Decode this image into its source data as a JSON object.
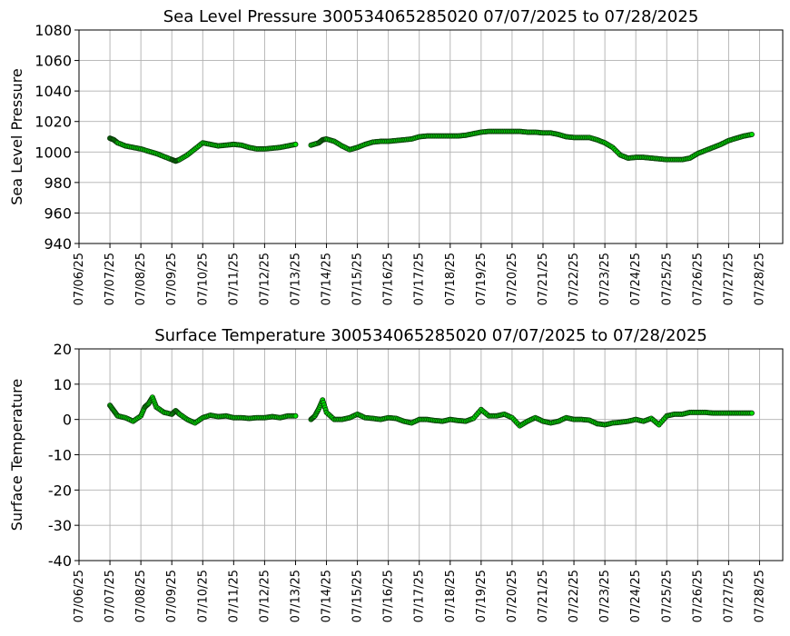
{
  "chart_data": [
    {
      "type": "scatter",
      "title": "Sea Level Pressure 300534065285020  07/07/2025 to 07/28/2025",
      "xlabel": "",
      "ylabel": "Sea Level Pressure",
      "xlim": [
        "07/06/2025",
        "07/28/2025 18:00"
      ],
      "ylim": [
        940,
        1080
      ],
      "yticks": [
        940,
        960,
        980,
        1000,
        1020,
        1040,
        1060,
        1080
      ],
      "xtick_labels": [
        "07/06/25",
        "07/07/25",
        "07/08/25",
        "07/09/25",
        "07/10/25",
        "07/11/25",
        "07/12/25",
        "07/13/25",
        "07/14/25",
        "07/15/25",
        "07/16/25",
        "07/17/25",
        "07/18/25",
        "07/19/25",
        "07/20/25",
        "07/21/25",
        "07/22/25",
        "07/23/25",
        "07/24/25",
        "07/25/25",
        "07/26/25",
        "07/27/25",
        "07/28/25"
      ],
      "grid": true,
      "marker_color": "#00e000",
      "marker_edge_color": "#0a3a0a",
      "series": [
        {
          "points": [
            [
              "07/07/2025 00:00",
              1009
            ],
            [
              "07/07/2025 03:00",
              1008
            ],
            [
              "07/07/2025 06:00",
              1006
            ],
            [
              "07/07/2025 12:00",
              1004
            ],
            [
              "07/07/2025 18:00",
              1003
            ],
            [
              "07/08/2025 00:00",
              1002
            ],
            [
              "07/08/2025 06:00",
              1000.5
            ],
            [
              "07/08/2025 12:00",
              999
            ],
            [
              "07/08/2025 18:00",
              997
            ],
            [
              "07/09/2025 00:00",
              995
            ],
            [
              "07/09/2025 03:00",
              994
            ],
            [
              "07/09/2025 06:00",
              995
            ],
            [
              "07/09/2025 12:00",
              998
            ],
            [
              "07/09/2025 18:00",
              1002
            ],
            [
              "07/10/2025 00:00",
              1006
            ],
            [
              "07/10/2025 06:00",
              1005
            ],
            [
              "07/10/2025 12:00",
              1004
            ],
            [
              "07/10/2025 18:00",
              1004.5
            ],
            [
              "07/11/2025 00:00",
              1005
            ],
            [
              "07/11/2025 06:00",
              1004.5
            ],
            [
              "07/11/2025 12:00",
              1003
            ],
            [
              "07/11/2025 18:00",
              1002
            ],
            [
              "07/12/2025 00:00",
              1002
            ],
            [
              "07/12/2025 06:00",
              1002.5
            ],
            [
              "07/12/2025 12:00",
              1003
            ],
            [
              "07/12/2025 18:00",
              1004
            ],
            [
              "07/13/2025 00:00",
              1005
            ],
            [
              "07/13/2025 12:00",
              1004.5
            ],
            [
              "07/13/2025 18:00",
              1006
            ],
            [
              "07/13/2025 21:00",
              1008
            ],
            [
              "07/14/2025 00:00",
              1008.5
            ],
            [
              "07/14/2025 06:00",
              1007
            ],
            [
              "07/14/2025 12:00",
              1004
            ],
            [
              "07/14/2025 18:00",
              1001.5
            ],
            [
              "07/15/2025 00:00",
              1003
            ],
            [
              "07/15/2025 06:00",
              1005
            ],
            [
              "07/15/2025 12:00",
              1006.5
            ],
            [
              "07/15/2025 18:00",
              1007
            ],
            [
              "07/16/2025 00:00",
              1007
            ],
            [
              "07/16/2025 06:00",
              1007.5
            ],
            [
              "07/16/2025 12:00",
              1008
            ],
            [
              "07/16/2025 18:00",
              1008.5
            ],
            [
              "07/17/2025 00:00",
              1010
            ],
            [
              "07/17/2025 06:00",
              1010.5
            ],
            [
              "07/17/2025 12:00",
              1010.5
            ],
            [
              "07/17/2025 18:00",
              1010.5
            ],
            [
              "07/18/2025 00:00",
              1010.5
            ],
            [
              "07/18/2025 06:00",
              1010.5
            ],
            [
              "07/18/2025 12:00",
              1011
            ],
            [
              "07/18/2025 18:00",
              1012
            ],
            [
              "07/19/2025 00:00",
              1013
            ],
            [
              "07/19/2025 06:00",
              1013.5
            ],
            [
              "07/19/2025 12:00",
              1013.5
            ],
            [
              "07/19/2025 18:00",
              1013.5
            ],
            [
              "07/20/2025 00:00",
              1013.5
            ],
            [
              "07/20/2025 06:00",
              1013.5
            ],
            [
              "07/20/2025 12:00",
              1013
            ],
            [
              "07/20/2025 18:00",
              1013
            ],
            [
              "07/21/2025 00:00",
              1012.5
            ],
            [
              "07/21/2025 06:00",
              1012.5
            ],
            [
              "07/21/2025 12:00",
              1011.5
            ],
            [
              "07/21/2025 18:00",
              1010
            ],
            [
              "07/22/2025 00:00",
              1009.5
            ],
            [
              "07/22/2025 06:00",
              1009.5
            ],
            [
              "07/22/2025 12:00",
              1009.5
            ],
            [
              "07/22/2025 18:00",
              1008
            ],
            [
              "07/23/2025 00:00",
              1006
            ],
            [
              "07/23/2025 06:00",
              1003
            ],
            [
              "07/23/2025 12:00",
              998
            ],
            [
              "07/23/2025 18:00",
              996
            ],
            [
              "07/24/2025 00:00",
              996.5
            ],
            [
              "07/24/2025 06:00",
              996.5
            ],
            [
              "07/24/2025 12:00",
              996
            ],
            [
              "07/24/2025 18:00",
              995.5
            ],
            [
              "07/25/2025 00:00",
              995
            ],
            [
              "07/25/2025 06:00",
              995
            ],
            [
              "07/25/2025 12:00",
              995
            ],
            [
              "07/25/2025 18:00",
              996
            ],
            [
              "07/26/2025 00:00",
              999
            ],
            [
              "07/26/2025 06:00",
              1001
            ],
            [
              "07/26/2025 12:00",
              1003
            ],
            [
              "07/26/2025 18:00",
              1005
            ],
            [
              "07/27/2025 00:00",
              1007.5
            ],
            [
              "07/27/2025 06:00",
              1009
            ],
            [
              "07/27/2025 12:00",
              1010.5
            ],
            [
              "07/27/2025 18:00",
              1011.5
            ]
          ]
        }
      ]
    },
    {
      "type": "scatter",
      "title": "Surface Temperature 300534065285020  07/07/2025 to 07/28/2025",
      "xlabel": "",
      "ylabel": "Surface Temperature",
      "xlim": [
        "07/06/2025",
        "07/28/2025 18:00"
      ],
      "ylim": [
        -40,
        20
      ],
      "yticks": [
        -40,
        -30,
        -20,
        -10,
        0,
        10,
        20
      ],
      "xtick_labels": [
        "07/06/25",
        "07/07/25",
        "07/08/25",
        "07/09/25",
        "07/10/25",
        "07/11/25",
        "07/12/25",
        "07/13/25",
        "07/14/25",
        "07/15/25",
        "07/16/25",
        "07/17/25",
        "07/18/25",
        "07/19/25",
        "07/20/25",
        "07/21/25",
        "07/22/25",
        "07/23/25",
        "07/24/25",
        "07/25/25",
        "07/26/25",
        "07/27/25",
        "07/28/25"
      ],
      "grid": true,
      "marker_color": "#00e000",
      "marker_edge_color": "#0a3a0a",
      "series": [
        {
          "points": [
            [
              "07/07/2025 00:00",
              4
            ],
            [
              "07/07/2025 03:00",
              2.5
            ],
            [
              "07/07/2025 06:00",
              1
            ],
            [
              "07/07/2025 12:00",
              0.5
            ],
            [
              "07/07/2025 18:00",
              -0.5
            ],
            [
              "07/08/2025 00:00",
              1
            ],
            [
              "07/08/2025 03:00",
              3.5
            ],
            [
              "07/08/2025 06:00",
              4.5
            ],
            [
              "07/08/2025 09:00",
              6.3
            ],
            [
              "07/08/2025 12:00",
              3.5
            ],
            [
              "07/08/2025 18:00",
              2
            ],
            [
              "07/09/2025 00:00",
              1.5
            ],
            [
              "07/09/2025 03:00",
              2.5
            ],
            [
              "07/09/2025 06:00",
              1.5
            ],
            [
              "07/09/2025 12:00",
              0
            ],
            [
              "07/09/2025 18:00",
              -1
            ],
            [
              "07/10/2025 00:00",
              0.5
            ],
            [
              "07/10/2025 06:00",
              1.2
            ],
            [
              "07/10/2025 12:00",
              0.8
            ],
            [
              "07/10/2025 18:00",
              1
            ],
            [
              "07/11/2025 00:00",
              0.5
            ],
            [
              "07/11/2025 06:00",
              0.5
            ],
            [
              "07/11/2025 12:00",
              0.3
            ],
            [
              "07/11/2025 18:00",
              0.5
            ],
            [
              "07/12/2025 00:00",
              0.5
            ],
            [
              "07/12/2025 06:00",
              0.8
            ],
            [
              "07/12/2025 12:00",
              0.5
            ],
            [
              "07/12/2025 18:00",
              1
            ],
            [
              "07/13/2025 00:00",
              1
            ],
            [
              "07/13/2025 12:00",
              0
            ],
            [
              "07/13/2025 15:00",
              1
            ],
            [
              "07/13/2025 18:00",
              3
            ],
            [
              "07/13/2025 21:00",
              5.5
            ],
            [
              "07/14/2025 00:00",
              2
            ],
            [
              "07/14/2025 06:00",
              0
            ],
            [
              "07/14/2025 12:00",
              0
            ],
            [
              "07/14/2025 18:00",
              0.5
            ],
            [
              "07/15/2025 00:00",
              1.5
            ],
            [
              "07/15/2025 06:00",
              0.5
            ],
            [
              "07/15/2025 12:00",
              0.3
            ],
            [
              "07/15/2025 18:00",
              0
            ],
            [
              "07/16/2025 00:00",
              0.5
            ],
            [
              "07/16/2025 06:00",
              0.3
            ],
            [
              "07/16/2025 12:00",
              -0.5
            ],
            [
              "07/16/2025 18:00",
              -1
            ],
            [
              "07/17/2025 00:00",
              0
            ],
            [
              "07/17/2025 06:00",
              0
            ],
            [
              "07/17/2025 12:00",
              -0.3
            ],
            [
              "07/17/2025 18:00",
              -0.5
            ],
            [
              "07/18/2025 00:00",
              0
            ],
            [
              "07/18/2025 06:00",
              -0.3
            ],
            [
              "07/18/2025 12:00",
              -0.5
            ],
            [
              "07/18/2025 18:00",
              0.3
            ],
            [
              "07/19/2025 00:00",
              2.8
            ],
            [
              "07/19/2025 06:00",
              1
            ],
            [
              "07/19/2025 12:00",
              1
            ],
            [
              "07/19/2025 18:00",
              1.5
            ],
            [
              "07/20/2025 00:00",
              0.5
            ],
            [
              "07/20/2025 06:00",
              -1.8
            ],
            [
              "07/20/2025 12:00",
              -0.5
            ],
            [
              "07/20/2025 18:00",
              0.5
            ],
            [
              "07/21/2025 00:00",
              -0.5
            ],
            [
              "07/21/2025 06:00",
              -1
            ],
            [
              "07/21/2025 12:00",
              -0.5
            ],
            [
              "07/21/2025 18:00",
              0.5
            ],
            [
              "07/22/2025 00:00",
              0
            ],
            [
              "07/22/2025 06:00",
              0
            ],
            [
              "07/22/2025 12:00",
              -0.2
            ],
            [
              "07/22/2025 18:00",
              -1.2
            ],
            [
              "07/23/2025 00:00",
              -1.5
            ],
            [
              "07/23/2025 06:00",
              -1
            ],
            [
              "07/23/2025 12:00",
              -0.8
            ],
            [
              "07/23/2025 18:00",
              -0.5
            ],
            [
              "07/24/2025 00:00",
              0
            ],
            [
              "07/24/2025 06:00",
              -0.5
            ],
            [
              "07/24/2025 12:00",
              0.3
            ],
            [
              "07/24/2025 18:00",
              -1.5
            ],
            [
              "07/25/2025 00:00",
              1
            ],
            [
              "07/25/2025 06:00",
              1.5
            ],
            [
              "07/25/2025 12:00",
              1.5
            ],
            [
              "07/25/2025 18:00",
              2
            ],
            [
              "07/26/2025 00:00",
              2
            ],
            [
              "07/26/2025 06:00",
              2
            ],
            [
              "07/26/2025 12:00",
              1.8
            ],
            [
              "07/26/2025 18:00",
              1.8
            ],
            [
              "07/27/2025 00:00",
              1.8
            ],
            [
              "07/27/2025 06:00",
              1.8
            ],
            [
              "07/27/2025 12:00",
              1.8
            ],
            [
              "07/27/2025 18:00",
              1.8
            ]
          ]
        }
      ]
    }
  ]
}
